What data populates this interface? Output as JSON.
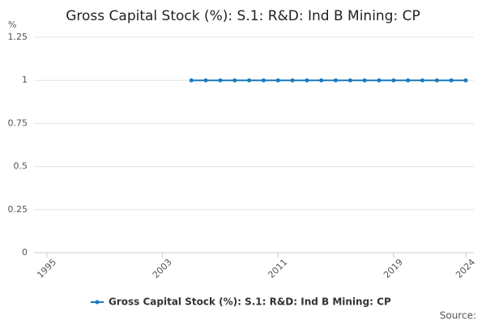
{
  "chart_data": {
    "type": "line",
    "title": "Gross Capital Stock (%): S.1: R&D: Ind B Mining: CP",
    "y_label": "%",
    "x": [
      2005,
      2006,
      2007,
      2008,
      2009,
      2010,
      2011,
      2012,
      2013,
      2014,
      2015,
      2016,
      2017,
      2018,
      2019,
      2020,
      2021,
      2022,
      2023,
      2024
    ],
    "series": [
      {
        "name": "Gross Capital Stock (%): S.1: R&D: Ind B Mining: CP",
        "color": "#1a7abf",
        "values": [
          1,
          1,
          1,
          1,
          1,
          1,
          1,
          1,
          1,
          1,
          1,
          1,
          1,
          1,
          1,
          1,
          1,
          1,
          1,
          1
        ]
      }
    ],
    "xlim": [
      1995,
      2024
    ],
    "xticks": [
      1995,
      2003,
      2011,
      2019,
      2024
    ],
    "ylim": [
      0,
      1.25
    ],
    "yticks": [
      0,
      0.25,
      0.5,
      0.75,
      1,
      1.25
    ],
    "grid": true,
    "legend": "bottom",
    "source": "Source:"
  }
}
